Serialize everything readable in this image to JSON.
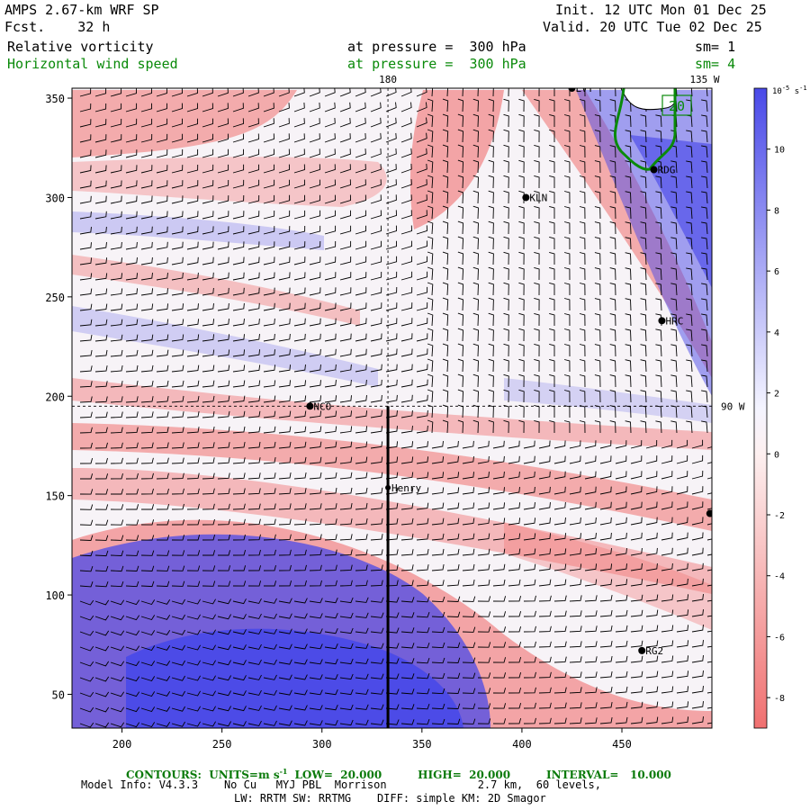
{
  "header": {
    "model": "AMPS 2.67-km WRF SP",
    "fcst": "Fcst.    32 h",
    "init": "Init. 12 UTC Mon 01 Dec 25",
    "valid": "Valid. 20 UTC Tue 02 Dec 25",
    "field1": "Relative vorticity",
    "field1_level": "at pressure =  300 hPa",
    "field1_sm": "sm= 1",
    "field2": "Horizontal wind speed",
    "field2_level": "at pressure =  300 hPa",
    "field2_sm": "sm= 4"
  },
  "colors": {
    "neg": "#f07070",
    "pos": "#4a4ae8",
    "green": "#0a8a0a"
  },
  "chart_data": {
    "type": "heatmap",
    "title": "Relative vorticity / Horizontal wind speed at 300 hPa",
    "xlim": [
      175,
      495
    ],
    "ylim": [
      33,
      355
    ],
    "xticks": [
      200,
      250,
      300,
      350,
      400,
      450
    ],
    "yticks": [
      50,
      100,
      150,
      200,
      250,
      300,
      350
    ],
    "meridian_labels": [
      {
        "label": "180",
        "x": 333
      },
      {
        "label": "135 W",
        "x": 490
      },
      {
        "label": "90 W",
        "y": 195
      }
    ],
    "colorbar": {
      "unit": "10",
      "unit_exp": "-5",
      "unit_suffix": "s",
      "unit_suffix_exp": "-1",
      "ticks": [
        10,
        8,
        6,
        4,
        2,
        0,
        -2,
        -4,
        -6,
        -8
      ],
      "range": [
        -9,
        12
      ]
    },
    "stations": [
      {
        "name": "LVT",
        "x": 425,
        "y": 355
      },
      {
        "name": "RDG",
        "x": 466,
        "y": 314
      },
      {
        "name": "KLN",
        "x": 402,
        "y": 300
      },
      {
        "name": "HRC",
        "x": 470,
        "y": 238
      },
      {
        "name": "NCO",
        "x": 294,
        "y": 195
      },
      {
        "name": "Henry",
        "x": 333,
        "y": 154
      },
      {
        "name": "RG2",
        "x": 460,
        "y": 72
      },
      {
        "name": "",
        "x": 494,
        "y": 141
      }
    ],
    "box_label": "20",
    "cross_section": {
      "x": 333,
      "y0": 33,
      "y1": 195
    }
  },
  "footer": {
    "contours": "CONTOURS:  UNITS=m s",
    "contours_exp": "-1",
    "low": "LOW=  20.000",
    "high": "HIGH=  20.000",
    "interval": "INTERVAL=   10.000",
    "line1": "Model Info: V4.3.3    No Cu   MYJ PBL  Morrison              2.7 km,  60 levels,",
    "line2": "LW: RRTM SW: RRTMG    DIFF: simple KM: 2D Smagor"
  }
}
